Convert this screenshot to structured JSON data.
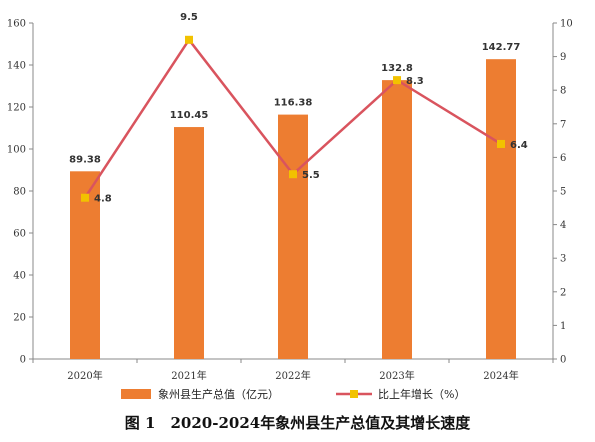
{
  "caption": {
    "figure_no": "图 1",
    "title": "2020-2024年象州县生产总值及其增长速度"
  },
  "chart_data": {
    "type": "bar",
    "title": "",
    "categories": [
      "2020年",
      "2021年",
      "2022年",
      "2023年",
      "2024年"
    ],
    "series": [
      {
        "name": "象州县生产总值（亿元）",
        "type": "bar",
        "axis": "left",
        "color": "#ED7D31",
        "values": [
          89.38,
          110.45,
          116.38,
          132.8,
          142.77
        ],
        "labels": [
          "89.38",
          "110.45",
          "116.38",
          "132.8",
          "142.77"
        ]
      },
      {
        "name": "比上年增长（%）",
        "type": "line",
        "axis": "right",
        "color": "#D9545E",
        "marker_color": "#F2C200",
        "values": [
          4.8,
          9.5,
          5.5,
          8.3,
          6.4
        ],
        "labels": [
          "4.8",
          "9.5",
          "5.5",
          "8.3",
          "6.4"
        ]
      }
    ],
    "y_left": {
      "min": 0,
      "max": 160,
      "ticks": [
        "0",
        "20",
        "40",
        "60",
        "80",
        "100",
        "120",
        "140",
        "160"
      ]
    },
    "y_right": {
      "min": 0,
      "max": 10,
      "ticks": [
        "0",
        "1",
        "2",
        "3",
        "4",
        "5",
        "6",
        "7",
        "8",
        "9",
        "10"
      ]
    },
    "grid": false,
    "legend_position": "bottom"
  }
}
